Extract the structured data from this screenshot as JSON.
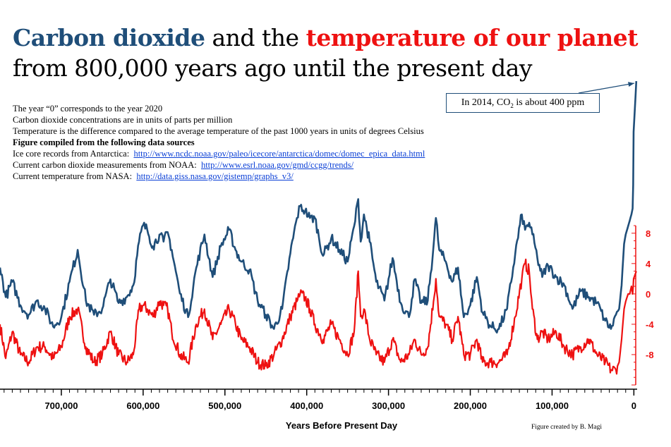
{
  "title": {
    "co2": "Carbon dioxide",
    "and_the": " and the ",
    "temperature": "temperature of our planet",
    "line2": "from 800,000 years ago until the present day"
  },
  "notes": {
    "line1": "The year “0” corresponds to the year 2020",
    "line2": "Carbon dioxide concentrations are in units of parts per million",
    "line3": "Temperature is the difference compared to the average temperature of the past 1000 years in units of degrees Celsius",
    "line4": "Figure compiled from the following data sources",
    "src1_label": "Ice core records from Antarctica:",
    "src1_link": "http://www.ncdc.noaa.gov/paleo/icecore/antarctica/domec/domec_epica_data.html",
    "src2_label": "Current carbon dioxide measurements from NOAA:",
    "src2_link": "http://www.esrl.noaa.gov/gmd/ccgg/trends/",
    "src3_label": "Current temperature from NASA:",
    "src3_link": "http://data.giss.nasa.gov/gistemp/graphs_v3/"
  },
  "callout": {
    "prefix": "In 2014, CO",
    "sub": "2",
    "suffix": " is about 400 ppm"
  },
  "credit": "Figure created by B. Magi",
  "colors": {
    "co2": "#1f4e79",
    "temperature": "#ee1111",
    "link": "#0a3fd6"
  },
  "chart_data": {
    "type": "line",
    "xlabel": "Years Before Present Day",
    "ylabel_right": "",
    "x_reversed": true,
    "xlim": [
      775000,
      -4000
    ],
    "x_ticks": [
      700000,
      600000,
      500000,
      400000,
      300000,
      200000,
      100000,
      0
    ],
    "x_tick_labels": [
      "700,000",
      "600,000",
      "500,000",
      "400,000",
      "300,000",
      "200,000",
      "100,000",
      "0"
    ],
    "temperature_axis": {
      "ylim": [
        -12,
        9
      ],
      "ticks": [
        8,
        4,
        0,
        -4,
        -8
      ],
      "tick_labels": [
        "8",
        "4",
        "0",
        "-4",
        "-8"
      ]
    },
    "co2_axis": {
      "ylim": [
        165,
        410
      ],
      "tick_labels": []
    },
    "series": [
      {
        "label": "co2",
        "color": "#1f4e79",
        "unit": "ppm",
        "x": [
          775000,
          768000,
          760000,
          750000,
          740000,
          730000,
          720000,
          710000,
          700000,
          690000,
          680000,
          670000,
          660000,
          650000,
          640000,
          630000,
          620000,
          612000,
          605000,
          600000,
          595000,
          588000,
          580000,
          575000,
          570000,
          565000,
          555000,
          545000,
          535000,
          525000,
          515000,
          505000,
          495000,
          487000,
          480000,
          470000,
          460000,
          450000,
          440000,
          430000,
          420000,
          412000,
          408000,
          402000,
          396000,
          390000,
          380000,
          370000,
          360000,
          350000,
          342000,
          337000,
          334000,
          330000,
          323000,
          315000,
          305000,
          295000,
          285000,
          275000,
          268000,
          260000,
          252000,
          245000,
          242000,
          238000,
          230000,
          222000,
          215000,
          208000,
          200000,
          192000,
          185000,
          175000,
          165000,
          155000,
          145000,
          137000,
          133000,
          128000,
          124000,
          118000,
          112000,
          105000,
          95000,
          85000,
          75000,
          65000,
          55000,
          45000,
          35000,
          28000,
          22000,
          18000,
          15000,
          12000,
          10000,
          7000,
          5000,
          3000,
          1500,
          800,
          300,
          -3000
        ],
        "y": [
          240,
          215,
          228,
          208,
          200,
          212,
          205,
          190,
          198,
          228,
          255,
          212,
          200,
          205,
          230,
          210,
          215,
          225,
          262,
          276,
          272,
          258,
          268,
          262,
          270,
          255,
          218,
          198,
          240,
          268,
          232,
          258,
          272,
          255,
          245,
          238,
          212,
          200,
          188,
          205,
          252,
          282,
          292,
          288,
          282,
          282,
          250,
          265,
          255,
          245,
          275,
          298,
          262,
          285,
          262,
          228,
          212,
          248,
          210,
          198,
          230,
          210,
          212,
          258,
          282,
          255,
          245,
          228,
          240,
          198,
          208,
          232,
          202,
          190,
          188,
          205,
          252,
          285,
          272,
          278,
          268,
          248,
          232,
          242,
          232,
          225,
          205,
          220,
          215,
          210,
          195,
          188,
          200,
          205,
          225,
          260,
          268,
          275,
          280,
          285,
          290,
          310,
          355,
          398
        ]
      },
      {
        "label": "temperature",
        "color": "#ee1111",
        "unit": "°C",
        "x": [
          775000,
          768000,
          760000,
          750000,
          740000,
          730000,
          720000,
          710000,
          700000,
          690000,
          680000,
          670000,
          660000,
          650000,
          640000,
          630000,
          620000,
          612000,
          605000,
          600000,
          595000,
          588000,
          580000,
          575000,
          570000,
          565000,
          555000,
          545000,
          535000,
          525000,
          515000,
          505000,
          495000,
          487000,
          480000,
          470000,
          460000,
          450000,
          440000,
          430000,
          420000,
          412000,
          408000,
          402000,
          396000,
          390000,
          380000,
          370000,
          360000,
          350000,
          342000,
          337000,
          334000,
          330000,
          323000,
          315000,
          305000,
          295000,
          285000,
          275000,
          268000,
          260000,
          252000,
          245000,
          242000,
          238000,
          230000,
          222000,
          215000,
          208000,
          200000,
          192000,
          185000,
          175000,
          165000,
          155000,
          145000,
          137000,
          133000,
          128000,
          124000,
          118000,
          112000,
          105000,
          95000,
          85000,
          75000,
          65000,
          55000,
          45000,
          35000,
          28000,
          22000,
          18000,
          15000,
          12000,
          10000,
          7000,
          5000,
          3000,
          1500,
          800,
          300,
          -3000
        ],
        "y": [
          -4,
          -8.5,
          -5,
          -8,
          -9,
          -7,
          -7,
          -8.5,
          -7,
          -3,
          -2,
          -7,
          -9,
          -8,
          -5,
          -8,
          -9,
          -8,
          -2,
          -1.5,
          -2,
          -3,
          -1,
          -1.5,
          -2,
          -5,
          -8,
          -9,
          -4,
          -2,
          -6,
          -4,
          -2,
          -4,
          -6,
          -7,
          -9,
          -9.5,
          -8,
          -6,
          -3,
          -1,
          0,
          -0.5,
          -2,
          -4,
          -6,
          -4,
          -6,
          -8,
          -5,
          3,
          -3,
          -2,
          -6,
          -8,
          -9,
          -6,
          -9,
          -8,
          -6,
          -8,
          -7,
          -1,
          2,
          -3,
          -4,
          -6,
          -3,
          -8,
          -8,
          -6,
          -9,
          -9,
          -9,
          -8,
          -3,
          2,
          4,
          3,
          -2,
          -6,
          -5,
          -6,
          -5,
          -7,
          -8,
          -7,
          -6,
          -8,
          -9,
          -10,
          -10,
          -9,
          -6,
          -2,
          -1,
          0,
          0,
          1,
          0,
          1,
          2,
          3
        ]
      }
    ],
    "annotation": "In 2014, CO2 is about 400 ppm"
  }
}
